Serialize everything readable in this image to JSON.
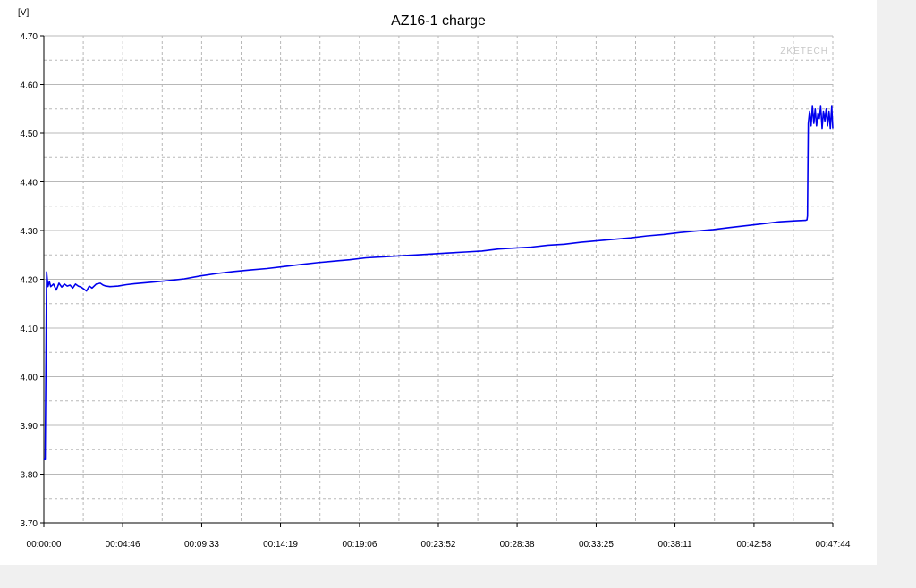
{
  "chart_data": {
    "type": "line",
    "title": "AZ16-1 charge",
    "ylabel": "[V]",
    "xlabel": "",
    "watermark": "ZKETECH",
    "ylim": [
      3.7,
      4.7
    ],
    "xlim": [
      "00:00:00",
      "00:47:44"
    ],
    "y_ticks": [
      "3.70",
      "3.80",
      "3.90",
      "4.00",
      "4.10",
      "4.20",
      "4.30",
      "4.40",
      "4.50",
      "4.60",
      "4.70"
    ],
    "x_ticks": [
      "00:00:00",
      "00:04:46",
      "00:09:33",
      "00:14:19",
      "00:19:06",
      "00:23:52",
      "00:28:38",
      "00:33:25",
      "00:38:11",
      "00:42:58",
      "00:47:44"
    ],
    "grid": true,
    "colors": {
      "line": "#0000ee",
      "grid": "#b8b8b8",
      "watermark": "#c8c8c8",
      "panel": "#ffffff",
      "background": "#f0f0f0"
    },
    "series": [
      {
        "x": [
          "00:00:00",
          "00:00:05",
          "00:00:10",
          "00:00:15",
          "00:00:20",
          "00:00:25",
          "00:00:35",
          "00:00:45",
          "00:00:55",
          "00:01:05",
          "00:01:15",
          "00:01:25",
          "00:01:35",
          "00:01:45",
          "00:01:55",
          "00:02:05",
          "00:02:15",
          "00:02:25",
          "00:02:35",
          "00:02:45",
          "00:02:55",
          "00:03:10",
          "00:03:25",
          "00:03:35",
          "00:03:45",
          "00:04:00",
          "00:04:30",
          "00:05:00",
          "00:05:30",
          "00:06:30",
          "00:07:30",
          "00:08:30",
          "00:09:30",
          "00:10:30",
          "00:11:30",
          "00:12:30",
          "00:13:30",
          "00:14:30",
          "00:15:30",
          "00:16:30",
          "00:17:30",
          "00:18:30",
          "00:19:30",
          "00:20:30",
          "00:21:30",
          "00:22:30",
          "00:23:30",
          "00:24:30",
          "00:25:30",
          "00:26:30",
          "00:27:30",
          "00:28:30",
          "00:29:30",
          "00:30:30",
          "00:31:30",
          "00:32:30",
          "00:33:30",
          "00:34:30",
          "00:35:30",
          "00:36:30",
          "00:37:30",
          "00:38:30",
          "00:39:30",
          "00:40:30",
          "00:41:30",
          "00:42:30",
          "00:43:30",
          "00:44:30",
          "00:45:30",
          "00:46:05",
          "00:46:10",
          "00:46:12",
          "00:46:15",
          "00:46:20",
          "00:46:25",
          "00:46:30",
          "00:46:35",
          "00:46:40",
          "00:46:45",
          "00:46:50",
          "00:46:55",
          "00:47:00",
          "00:47:05",
          "00:47:10",
          "00:47:15",
          "00:47:20",
          "00:47:25",
          "00:47:30",
          "00:47:35",
          "00:47:40",
          "00:47:44"
        ],
        "y": [
          3.83,
          3.83,
          4.215,
          4.185,
          4.195,
          4.185,
          4.19,
          4.178,
          4.192,
          4.184,
          4.19,
          4.186,
          4.188,
          4.182,
          4.19,
          4.186,
          4.184,
          4.18,
          4.176,
          4.186,
          4.182,
          4.19,
          4.192,
          4.188,
          4.186,
          4.185,
          4.186,
          4.189,
          4.191,
          4.194,
          4.197,
          4.201,
          4.207,
          4.212,
          4.216,
          4.219,
          4.222,
          4.226,
          4.23,
          4.234,
          4.237,
          4.24,
          4.244,
          4.246,
          4.248,
          4.25,
          4.252,
          4.254,
          4.256,
          4.258,
          4.262,
          4.264,
          4.266,
          4.27,
          4.272,
          4.276,
          4.279,
          4.282,
          4.285,
          4.289,
          4.292,
          4.296,
          4.299,
          4.302,
          4.306,
          4.31,
          4.314,
          4.318,
          4.32,
          4.321,
          4.322,
          4.33,
          4.52,
          4.545,
          4.515,
          4.555,
          4.52,
          4.55,
          4.515,
          4.54,
          4.53,
          4.555,
          4.51,
          4.545,
          4.525,
          4.55,
          4.515,
          4.545,
          4.51,
          4.555,
          4.51
        ]
      }
    ]
  }
}
